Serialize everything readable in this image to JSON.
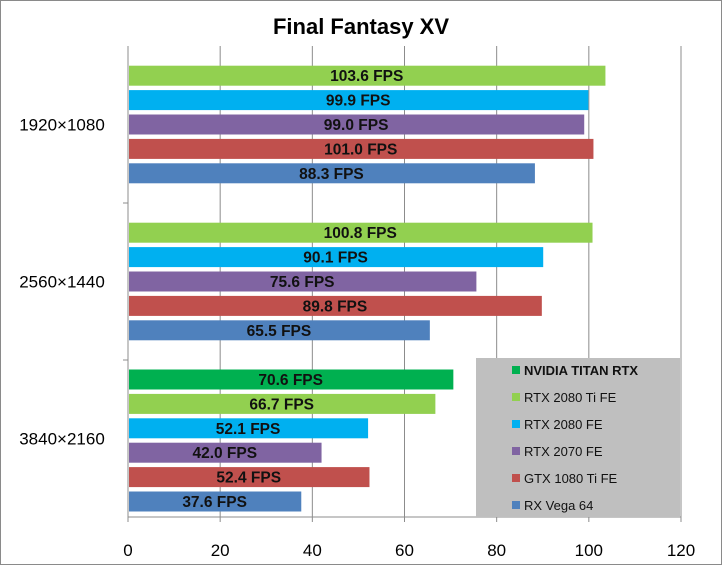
{
  "chart_data": {
    "type": "bar",
    "orientation": "horizontal",
    "title": "Final Fantasy XV",
    "xlabel": "",
    "ylabel": "",
    "xlim": [
      0,
      120
    ],
    "x_ticks": [
      0,
      20,
      40,
      60,
      80,
      100,
      120
    ],
    "grid": true,
    "legend_position": "bottom-right",
    "value_suffix": " FPS",
    "categories": [
      "1920×1080",
      "2560×1440",
      "3840×2160"
    ],
    "series": [
      {
        "name": "NVIDIA TITAN RTX",
        "color": "#00b050",
        "values": [
          null,
          null,
          70.6
        ],
        "labels": [
          "",
          "",
          "70.6 FPS"
        ]
      },
      {
        "name": "RTX 2080 Ti FE",
        "color": "#92d050",
        "values": [
          103.6,
          100.8,
          66.7
        ],
        "labels": [
          "103.6 FPS",
          "100.8 FPS",
          "66.7 FPS"
        ]
      },
      {
        "name": "RTX 2080 FE",
        "color": "#00b0f0",
        "values": [
          99.9,
          90.1,
          52.1
        ],
        "labels": [
          "99.9 FPS",
          "90.1 FPS",
          "52.1 FPS"
        ]
      },
      {
        "name": "RTX 2070 FE",
        "color": "#8064a2",
        "values": [
          99.0,
          75.6,
          42.0
        ],
        "labels": [
          "99.0 FPS",
          "75.6 FPS",
          "42.0 FPS"
        ]
      },
      {
        "name": "GTX 1080 Ti FE",
        "color": "#c0504d",
        "values": [
          101.0,
          89.8,
          52.4
        ],
        "labels": [
          "101.0 FPS",
          "89.8 FPS",
          "52.4 FPS"
        ]
      },
      {
        "name": "RX Vega 64",
        "color": "#4f81bd",
        "values": [
          88.3,
          65.5,
          37.6
        ],
        "labels": [
          "88.3 FPS",
          "65.5 FPS",
          "37.6 FPS"
        ]
      }
    ],
    "legend_bold": [
      "NVIDIA TITAN RTX"
    ]
  }
}
